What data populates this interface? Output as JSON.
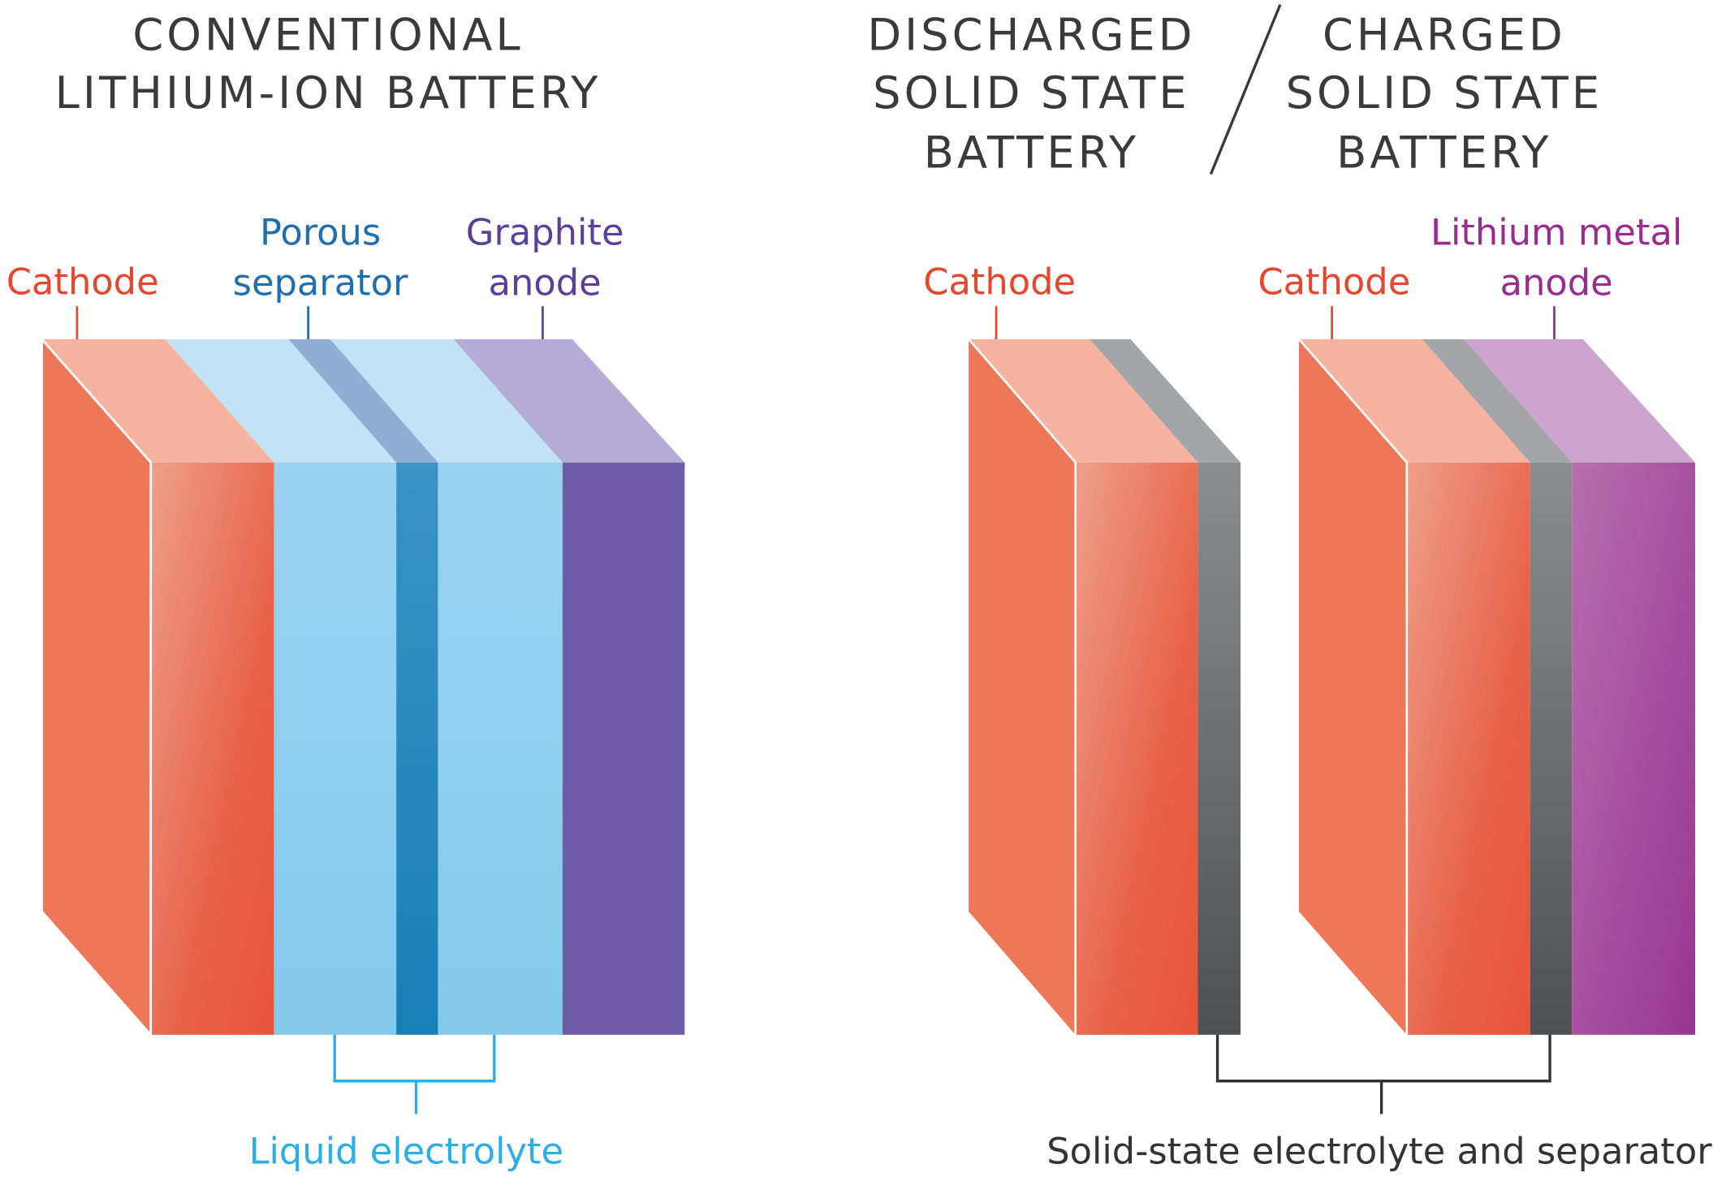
{
  "colors": {
    "cathode_label": "#e8452c",
    "separator_label": "#1f6fb0",
    "graphite_label": "#5b3f9c",
    "lithium_label": "#9b2c8f",
    "electrolyte_label": "#29aee6",
    "solid_label": "#333333"
  },
  "conventional": {
    "title_line1": "CONVENTIONAL",
    "title_line2": "LITHIUM-ION BATTERY",
    "cathode": "Cathode",
    "separator_line1": "Porous",
    "separator_line2": "separator",
    "anode_line1": "Graphite",
    "anode_line2": "anode",
    "electrolyte": "Liquid electrolyte"
  },
  "solid_state": {
    "discharged_line1": "DISCHARGED",
    "discharged_line2": "SOLID STATE",
    "discharged_line3": "BATTERY",
    "charged_line1": "CHARGED",
    "charged_line2": "SOLID STATE",
    "charged_line3": "BATTERY",
    "cathode_discharged": "Cathode",
    "cathode_charged": "Cathode",
    "anode_line1": "Lithium metal",
    "anode_line2": "anode",
    "electrolyte": "Solid-state electrolyte and separator"
  }
}
